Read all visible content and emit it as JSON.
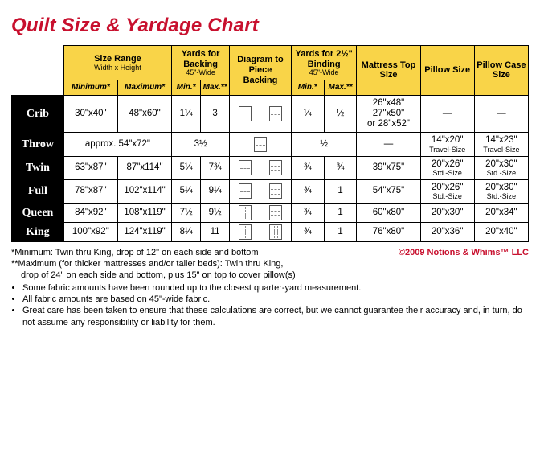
{
  "title": "Quilt Size & Yardage Chart",
  "header": {
    "size_range": "Size Range",
    "size_range_sub": "Width x Height",
    "minimum": "Minimum*",
    "maximum": "Maximum*",
    "yards_backing": "Yards for Backing",
    "width45": "45\"-Wide",
    "diagram": "Diagram to Piece Backing",
    "yards_binding": "Yards for 2½\" Binding",
    "min": "Min.*",
    "max": "Max.**",
    "mattress": "Mattress Top Size",
    "pillow": "Pillow Size",
    "pillowcase": "Pillow Case Size"
  },
  "rows": [
    {
      "name": "Crib",
      "min": "30\"x40\"",
      "max": "48\"x60\"",
      "yb_min": "1¼",
      "yb_max": "3",
      "dg_min": "plain",
      "dg_max": "h1",
      "bd_min": "¼",
      "bd_max": "½",
      "mattress": "26\"x48\"\n27\"x50\"\nor 28\"x52\"",
      "pillow": "—",
      "pillowcase": "—"
    },
    {
      "name": "Throw",
      "approx": "approx. 54\"x72\"",
      "yb_single": "3½",
      "dg_single": "h1",
      "bd_single": "½",
      "mattress": "—",
      "pillow": "14\"x20\"",
      "pillow_sub": "Travel-Size",
      "pillowcase": "14\"x23\"",
      "pillowcase_sub": "Travel-Size"
    },
    {
      "name": "Twin",
      "min": "63\"x87\"",
      "max": "87\"x114\"",
      "yb_min": "5¼",
      "yb_max": "7¾",
      "dg_min": "h1",
      "dg_max": "h2",
      "bd_min": "¾",
      "bd_max": "¾",
      "mattress": "39\"x75\"",
      "pillow": "20\"x26\"",
      "pillow_sub": "Std.-Size",
      "pillowcase": "20\"x30\"",
      "pillowcase_sub": "Std.-Size"
    },
    {
      "name": "Full",
      "min": "78\"x87\"",
      "max": "102\"x114\"",
      "yb_min": "5¼",
      "yb_max": "9¼",
      "dg_min": "h1",
      "dg_max": "h2",
      "bd_min": "¾",
      "bd_max": "1",
      "mattress": "54\"x75\"",
      "pillow": "20\"x26\"",
      "pillow_sub": "Std.-Size",
      "pillowcase": "20\"x30\"",
      "pillowcase_sub": "Std.-Size"
    },
    {
      "name": "Queen",
      "min": "84\"x92\"",
      "max": "108\"x119\"",
      "yb_min": "7½",
      "yb_max": "9½",
      "dg_min": "v1",
      "dg_max": "h2",
      "bd_min": "¾",
      "bd_max": "1",
      "mattress": "60\"x80\"",
      "pillow": "20\"x30\"",
      "pillowcase": "20\"x34\""
    },
    {
      "name": "King",
      "min": "100\"x92\"",
      "max": "124\"x119\"",
      "yb_min": "8¼",
      "yb_max": "11",
      "dg_min": "v1",
      "dg_max": "v2",
      "bd_min": "¾",
      "bd_max": "1",
      "mattress": "76\"x80\"",
      "pillow": "20\"x36\"",
      "pillowcase": "20\"x40\""
    }
  ],
  "footnotes": {
    "copyright": "©2009 Notions & Whims™ LLC",
    "star1": "*Minimum: Twin thru King, drop of 12\" on each side and bottom",
    "star2a": "**Maximum (for thicker mattresses and/or taller beds): Twin thru King,",
    "star2b": "drop of 24\" on each side and bottom, plus 15\" on top to cover pillow(s)",
    "b1": "Some fabric amounts have been rounded up to the closest quarter-yard measurement.",
    "b2": "All fabric amounts are based on 45\"-wide fabric.",
    "b3": "Great care has been taken to ensure that these calculations are correct, but we cannot guarantee their accuracy and, in turn, do not assume any responsibility or liability for them."
  },
  "colors": {
    "title": "#c8102e",
    "header_bg": "#f9d448",
    "rowhead_bg": "#000000",
    "border": "#000000",
    "background": "#ffffff"
  }
}
